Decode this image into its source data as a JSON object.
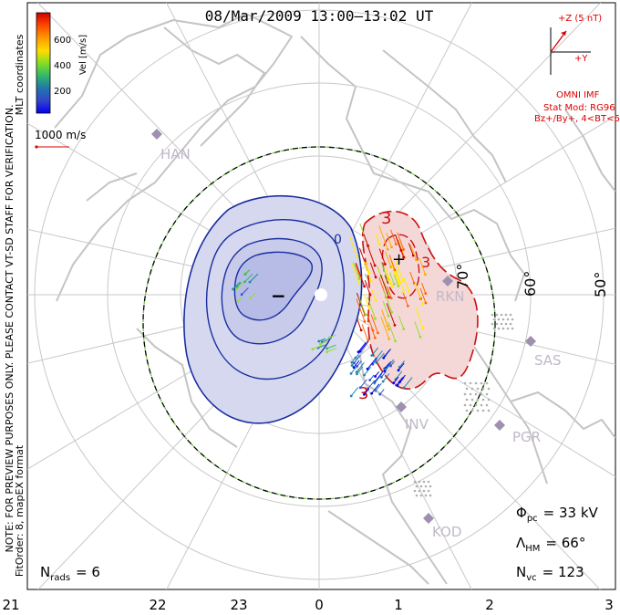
{
  "title": "08/Mar/2009  13:00–13:02  UT",
  "colorbar": {
    "label": "Vel [m/s]",
    "ticks": [
      "600",
      "400",
      "200"
    ],
    "colors": [
      "#cc0000",
      "#ff6600",
      "#ffaa00",
      "#ffee00",
      "#99dd33",
      "#33bb66",
      "#2288aa",
      "#3355cc",
      "#0000ee"
    ]
  },
  "coord_label": "MLT coordinates",
  "preview_note": "NOTE: FOR PREVIEW PURPOSES ONLY. PLEASE CONTACT VT-SD STAFF FOR VERIFICATION.",
  "fit_note": "FitOrder: 8, mapEX format",
  "vector_scale": "1000 m/s",
  "imf": {
    "z_label": "+Z (5 nT)",
    "y_label": "+Y",
    "title": "OMNI IMF",
    "model": "Stat Mod: RG96",
    "condition": "Bz+/By+, 4<BT<6"
  },
  "stations": [
    "HAN",
    "RKN",
    "SAS",
    "INV",
    "PGR",
    "KOD"
  ],
  "lat_labels": [
    "70°",
    "60°",
    "50°"
  ],
  "mlt_ticks": [
    "21",
    "22",
    "23",
    "0",
    "1",
    "2",
    "3"
  ],
  "contours": {
    "neg_label": "−",
    "pos_label": "+",
    "neg_level_label": "0",
    "pos_level_labels": [
      "3",
      "3",
      "3"
    ]
  },
  "stats": {
    "phi_symbol": "Φ",
    "phi_sub": "pc",
    "phi_value": "= 33 kV",
    "lambda_symbol": "Λ",
    "lambda_sub": "HM",
    "lambda_value": "= 66°",
    "nvc_symbol": "N",
    "nvc_sub": "vc",
    "nvc_value": "= 123",
    "nrads_symbol": "N",
    "nrads_sub": "rads",
    "nrads_value": "= 6"
  },
  "colors": {
    "neg_fill": "#d6d8ef",
    "neg_fill_inner": "#b9bfe6",
    "pos_fill": "#f4d8d8",
    "neg_line": "#1a2ea0",
    "pos_line": "#cc1111",
    "boundary_dash": "#66cc33",
    "grid": "#c8c8c8",
    "land": "#c4c4c4",
    "imf": "#dd0000",
    "station": "#a090b0"
  }
}
